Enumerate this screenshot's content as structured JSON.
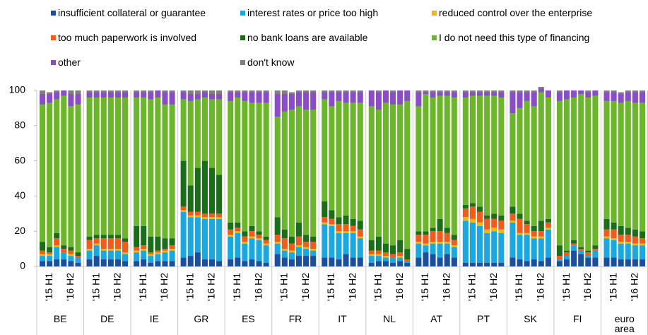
{
  "chart_data": {
    "type": "bar",
    "stacked": true,
    "groups": [
      "BE",
      "DE",
      "IE",
      "GR",
      "ES",
      "FR",
      "IT",
      "NL",
      "AT",
      "PT",
      "SK",
      "FI",
      "euro area"
    ],
    "period_labels": [
      null,
      "'15 H1",
      null,
      null,
      "'16 H2",
      null
    ],
    "ylim": [
      0,
      100
    ],
    "yticks": [
      0,
      20,
      40,
      60,
      80,
      100
    ],
    "grid": false,
    "series": [
      {
        "name": "insufficient collateral or guarantee",
        "color": "#1c4e9e",
        "values": [
          [
            3,
            3,
            4,
            4,
            3,
            2
          ],
          [
            4,
            6,
            4,
            4,
            4,
            3
          ],
          [
            3,
            4,
            2,
            3,
            3,
            3
          ],
          [
            5,
            6,
            8,
            4,
            4,
            3
          ],
          [
            4,
            5,
            3,
            4,
            3,
            2
          ],
          [
            7,
            5,
            4,
            6,
            6,
            6
          ],
          [
            5,
            5,
            4,
            7,
            5,
            5
          ],
          [
            2,
            3,
            3,
            2,
            3,
            2
          ],
          [
            5,
            8,
            7,
            5,
            7,
            5
          ],
          [
            2,
            2,
            2,
            2,
            2,
            2
          ],
          [
            5,
            4,
            3,
            4,
            3,
            5
          ],
          [
            3,
            4,
            9,
            7,
            5,
            5
          ],
          [
            5,
            5,
            4,
            4,
            4,
            4
          ]
        ]
      },
      {
        "name": "interest rates or price too high",
        "color": "#1aa8e0",
        "values": [
          [
            3,
            3,
            7,
            4,
            3,
            3
          ],
          [
            5,
            6,
            5,
            5,
            5,
            4
          ],
          [
            5,
            5,
            4,
            4,
            5,
            6
          ],
          [
            26,
            22,
            20,
            23,
            23,
            24
          ],
          [
            13,
            14,
            10,
            12,
            12,
            10
          ],
          [
            6,
            4,
            4,
            5,
            4,
            3
          ],
          [
            19,
            18,
            15,
            12,
            14,
            11
          ],
          [
            4,
            3,
            2,
            3,
            2,
            1
          ],
          [
            8,
            4,
            6,
            8,
            6,
            6
          ],
          [
            24,
            23,
            21,
            17,
            18,
            17
          ],
          [
            20,
            14,
            15,
            12,
            13,
            16
          ],
          [
            1,
            2,
            3,
            2,
            1,
            4
          ],
          [
            11,
            10,
            9,
            9,
            8,
            8
          ]
        ]
      },
      {
        "name": "reduced control over the enterprise",
        "color": "#f5b800",
        "values": [
          [
            1,
            1,
            1,
            0,
            1,
            0
          ],
          [
            1,
            1,
            1,
            1,
            1,
            1
          ],
          [
            1,
            1,
            1,
            1,
            1,
            1
          ],
          [
            1,
            1,
            1,
            1,
            1,
            1
          ],
          [
            1,
            1,
            1,
            1,
            1,
            1
          ],
          [
            1,
            1,
            1,
            1,
            1,
            1
          ],
          [
            1,
            1,
            1,
            1,
            1,
            1
          ],
          [
            1,
            1,
            1,
            0,
            1,
            0
          ],
          [
            1,
            1,
            1,
            1,
            1,
            1
          ],
          [
            2,
            2,
            2,
            2,
            2,
            2
          ],
          [
            1,
            1,
            1,
            1,
            1,
            1
          ],
          [
            0,
            0,
            0,
            0,
            0,
            0
          ],
          [
            1,
            1,
            1,
            1,
            1,
            1
          ]
        ]
      },
      {
        "name": "too much paperwork is involved",
        "color": "#f35b1b",
        "values": [
          [
            2,
            1,
            4,
            2,
            2,
            1
          ],
          [
            5,
            3,
            6,
            6,
            6,
            6
          ],
          [
            2,
            2,
            1,
            1,
            1,
            2
          ],
          [
            2,
            2,
            2,
            2,
            2,
            2
          ],
          [
            3,
            2,
            3,
            3,
            2,
            2
          ],
          [
            4,
            6,
            4,
            5,
            3,
            4
          ],
          [
            3,
            3,
            4,
            4,
            3,
            4
          ],
          [
            2,
            2,
            2,
            2,
            2,
            1
          ],
          [
            4,
            5,
            6,
            6,
            5,
            3
          ],
          [
            5,
            7,
            6,
            6,
            5,
            5
          ],
          [
            4,
            8,
            5,
            3,
            3,
            3
          ],
          [
            2,
            2,
            1,
            1,
            2,
            1
          ],
          [
            4,
            5,
            4,
            4,
            4,
            3
          ]
        ]
      },
      {
        "name": "no bank loans are available",
        "color": "#1a6e1a",
        "values": [
          [
            5,
            3,
            3,
            2,
            2,
            2
          ],
          [
            2,
            2,
            2,
            2,
            2,
            2
          ],
          [
            12,
            11,
            9,
            8,
            6,
            4
          ],
          [
            26,
            15,
            25,
            30,
            26,
            22
          ],
          [
            4,
            3,
            3,
            3,
            2,
            2
          ],
          [
            10,
            5,
            4,
            8,
            4,
            3
          ],
          [
            9,
            5,
            4,
            5,
            4,
            5
          ],
          [
            6,
            8,
            5,
            5,
            7,
            6
          ],
          [
            2,
            2,
            2,
            7,
            3,
            3
          ],
          [
            2,
            2,
            3,
            2,
            3,
            3
          ],
          [
            4,
            3,
            2,
            3,
            6,
            2
          ],
          [
            6,
            1,
            2,
            1,
            1,
            2
          ],
          [
            6,
            4,
            5,
            4,
            4,
            4
          ]
        ]
      },
      {
        "name": "I do not need this type of financing",
        "color": "#6cb62b",
        "values": [
          [
            78,
            82,
            76,
            85,
            80,
            84
          ],
          [
            79,
            78,
            78,
            78,
            78,
            80
          ],
          [
            73,
            73,
            78,
            79,
            76,
            76
          ],
          [
            35,
            48,
            39,
            36,
            39,
            43
          ],
          [
            69,
            71,
            74,
            70,
            73,
            76
          ],
          [
            57,
            67,
            72,
            66,
            71,
            72
          ],
          [
            58,
            59,
            66,
            64,
            66,
            67
          ],
          [
            76,
            72,
            80,
            80,
            77,
            84
          ],
          [
            71,
            78,
            74,
            70,
            75,
            78
          ],
          [
            61,
            61,
            63,
            68,
            67,
            67
          ],
          [
            53,
            60,
            68,
            68,
            73,
            69
          ],
          [
            82,
            86,
            81,
            87,
            87,
            85
          ],
          [
            67,
            69,
            70,
            72,
            72,
            73
          ]
        ]
      },
      {
        "name": "other",
        "color": "#8a4cc7",
        "values": [
          [
            6,
            5,
            4,
            3,
            7,
            6
          ],
          [
            3,
            3,
            3,
            3,
            3,
            3
          ],
          [
            3,
            3,
            4,
            4,
            7,
            7
          ],
          [
            4,
            4,
            3,
            3,
            3,
            3
          ],
          [
            5,
            3,
            5,
            6,
            6,
            6
          ],
          [
            13,
            10,
            9,
            8,
            10,
            10
          ],
          [
            4,
            8,
            5,
            6,
            6,
            6
          ],
          [
            9,
            10,
            7,
            7,
            8,
            6
          ],
          [
            8,
            1,
            3,
            2,
            2,
            3
          ],
          [
            3,
            2,
            2,
            2,
            2,
            3
          ],
          [
            12,
            9,
            5,
            8,
            2,
            4
          ],
          [
            5,
            5,
            4,
            2,
            3,
            3
          ],
          [
            5,
            5,
            5,
            5,
            6,
            6
          ]
        ]
      },
      {
        "name": "don't know",
        "color": "#7f7f7f",
        "values": [
          [
            2,
            1,
            1,
            0,
            2,
            2
          ],
          [
            1,
            1,
            1,
            1,
            1,
            1
          ],
          [
            1,
            1,
            1,
            0,
            1,
            1
          ],
          [
            1,
            2,
            2,
            1,
            2,
            2
          ],
          [
            1,
            1,
            1,
            1,
            1,
            1
          ],
          [
            2,
            2,
            1,
            1,
            1,
            1
          ],
          [
            1,
            1,
            1,
            1,
            1,
            1
          ],
          [
            0,
            1,
            0,
            1,
            0,
            0
          ],
          [
            1,
            1,
            1,
            1,
            1,
            1
          ],
          [
            1,
            1,
            1,
            1,
            1,
            1
          ],
          [
            1,
            1,
            1,
            1,
            1,
            0
          ],
          [
            1,
            0,
            0,
            0,
            1,
            0
          ],
          [
            1,
            1,
            1,
            1,
            1,
            1
          ]
        ]
      }
    ]
  }
}
